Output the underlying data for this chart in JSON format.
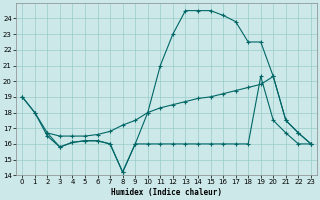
{
  "background_color": "#cce8e8",
  "grid_color": "#99cccc",
  "line_color": "#006666",
  "xlim": [
    -0.5,
    23.5
  ],
  "ylim": [
    14,
    25
  ],
  "yticks": [
    14,
    15,
    16,
    17,
    18,
    19,
    20,
    21,
    22,
    23,
    24
  ],
  "xticks": [
    0,
    1,
    2,
    3,
    4,
    5,
    6,
    7,
    8,
    9,
    10,
    11,
    12,
    13,
    14,
    15,
    16,
    17,
    18,
    19,
    20,
    21,
    22,
    23
  ],
  "xlabel": "Humidex (Indice chaleur)",
  "s1_x": [
    0,
    1,
    2,
    3,
    4,
    5,
    6,
    7,
    8,
    9,
    10,
    11,
    12,
    13,
    14,
    15,
    16,
    17,
    18,
    19,
    20,
    21,
    22,
    23
  ],
  "s1_y": [
    19.0,
    18.0,
    16.5,
    15.8,
    16.1,
    16.2,
    16.2,
    16.0,
    14.2,
    16.0,
    18.0,
    21.0,
    23.0,
    24.5,
    24.5,
    24.5,
    24.2,
    23.8,
    22.5,
    22.5,
    20.3,
    17.5,
    16.7,
    16.0
  ],
  "s2_x": [
    0,
    1,
    2,
    3,
    4,
    5,
    6,
    7,
    8,
    9,
    10,
    11,
    12,
    13,
    14,
    15,
    16,
    17,
    18,
    19,
    20,
    21,
    22,
    23
  ],
  "s2_y": [
    19.0,
    18.0,
    16.7,
    16.5,
    16.5,
    16.5,
    16.6,
    16.8,
    17.2,
    17.5,
    18.0,
    18.3,
    18.5,
    18.7,
    18.9,
    19.0,
    19.2,
    19.4,
    19.6,
    19.8,
    20.3,
    17.5,
    16.7,
    16.0
  ],
  "s3_x": [
    2,
    3,
    4,
    5,
    6,
    7,
    8,
    9,
    10,
    11,
    12,
    13,
    14,
    15,
    16,
    17,
    18,
    19,
    20,
    21,
    22,
    23
  ],
  "s3_y": [
    16.7,
    15.8,
    16.1,
    16.2,
    16.2,
    16.0,
    14.2,
    16.0,
    16.0,
    16.0,
    16.0,
    16.0,
    16.0,
    16.0,
    16.0,
    16.0,
    16.0,
    20.3,
    17.5,
    16.7,
    16.0,
    16.0
  ]
}
